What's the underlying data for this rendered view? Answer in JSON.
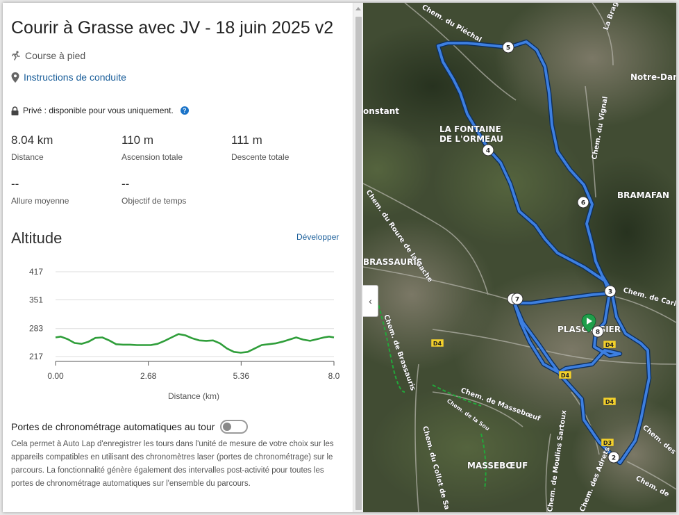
{
  "course": {
    "title": "Courir à Grasse avec JV - 18 juin 2025 v2",
    "activity_icon": "running-icon",
    "activity": "Course à pied",
    "directions_icon": "map-pin-icon",
    "directions_link": "Instructions de conduite",
    "privacy_icon": "lock-icon",
    "privacy": "Privé : disponible pour vous uniquement.",
    "help_icon": "question-icon",
    "help_glyph": "?"
  },
  "stats": [
    {
      "value": "8.04 km",
      "label": "Distance"
    },
    {
      "value": "110 m",
      "label": "Ascension totale"
    },
    {
      "value": "111 m",
      "label": "Descente totale"
    },
    {
      "value": "--",
      "label": "Allure moyenne"
    },
    {
      "value": "--",
      "label": "Objectif de temps"
    }
  ],
  "altitude": {
    "title": "Altitude",
    "expand_link": "Développer"
  },
  "chart_data": {
    "type": "line",
    "title": "",
    "xlabel": "Distance (km)",
    "ylabel": "",
    "x_ticks": [
      "0.00",
      "2.68",
      "5.36",
      "8.0"
    ],
    "y_ticks": [
      "417",
      "351",
      "283",
      "217"
    ],
    "xlim": [
      0,
      8.04
    ],
    "ylim": [
      217,
      417
    ],
    "grid": true,
    "series": [
      {
        "color": "#2f9e3a",
        "x": [
          0,
          0.15,
          0.35,
          0.55,
          0.75,
          0.95,
          1.15,
          1.35,
          1.55,
          1.75,
          1.95,
          2.15,
          2.35,
          2.55,
          2.75,
          2.95,
          3.15,
          3.35,
          3.55,
          3.75,
          3.95,
          4.15,
          4.35,
          4.55,
          4.75,
          4.95,
          5.15,
          5.35,
          5.55,
          5.75,
          5.95,
          6.15,
          6.35,
          6.55,
          6.75,
          6.95,
          7.15,
          7.35,
          7.55,
          7.75,
          7.9,
          8.04
        ],
        "y": [
          262,
          264,
          258,
          249,
          247,
          252,
          261,
          262,
          255,
          246,
          245,
          245,
          244,
          244,
          244,
          247,
          254,
          262,
          270,
          267,
          260,
          255,
          254,
          255,
          248,
          236,
          228,
          226,
          228,
          236,
          244,
          246,
          248,
          252,
          257,
          262,
          257,
          254,
          258,
          262,
          264,
          262
        ]
      }
    ]
  },
  "auto_lap": {
    "label": "Portes de chronométrage automatiques au tour",
    "enabled": false,
    "description": "Cela permet à Auto Lap d'enregistrer les tours dans l'unité de mesure de votre choix sur les appareils compatibles en utilisant des chronomètres laser (portes de chronométrage) sur le parcours. La fonctionnalité génère également des intervalles post-activité pour toutes les portes de chronométrage automatiques sur l'ensemble du parcours."
  },
  "map": {
    "collapse_icon": "chevron-left-icon",
    "collapse_glyph": "‹",
    "route_color": "#3d7fe0",
    "start_color": "#1f9e4a",
    "place_labels": [
      "LA FONTAINE",
      "DE L'ORMEAU",
      "BRAMAFAN",
      "BRASSAURIS",
      "PLASCASSIER",
      "MASSEBŒUF",
      "Notre-Dan",
      "onstant",
      "La Bragu"
    ],
    "road_labels": [
      "Chem. du Piéchal",
      "Chem. du Vignal",
      "Chem. du Roure de la Gache",
      "Chem. de Brassauris",
      "Chem. de Massebœuf",
      "Chem. du Collet de Sa",
      "Chem. de Moulins Sartoux",
      "Chem. des Adrets",
      "Chem. de Carig",
      "Chem. des",
      "Chem. de",
      "Chem. de la Sou"
    ],
    "road_badges": [
      "D4",
      "D4",
      "D4",
      "D4",
      "D3"
    ],
    "waypoints": [
      "2",
      "3",
      "4",
      "5",
      "6",
      "7",
      "8"
    ]
  }
}
